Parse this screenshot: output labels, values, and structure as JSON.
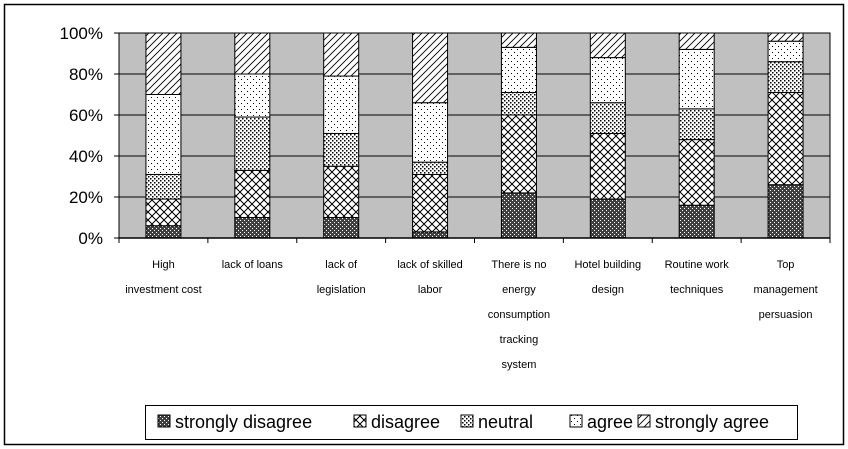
{
  "chart_data": {
    "type": "bar",
    "stacked": true,
    "percent": true,
    "title": "",
    "xlabel": "",
    "ylabel": "",
    "ylim": [
      0,
      100
    ],
    "yticks": [
      "0%",
      "20%",
      "40%",
      "60%",
      "80%",
      "100%"
    ],
    "categories": [
      [
        "High",
        "investment cost"
      ],
      [
        "lack of loans"
      ],
      [
        "lack of",
        "legislation"
      ],
      [
        "lack of skilled",
        "labor"
      ],
      [
        "There is no",
        "energy",
        "consumption",
        "tracking",
        "system"
      ],
      [
        "Hotel building",
        "design"
      ],
      [
        "Routine work",
        "techniques"
      ],
      [
        "Top",
        "management",
        "persuasion"
      ]
    ],
    "series": [
      {
        "name": "strongly disagree",
        "values": [
          6,
          10,
          10,
          3,
          22,
          19,
          16,
          26
        ]
      },
      {
        "name": "disagree",
        "values": [
          13,
          23,
          25,
          28,
          38,
          32,
          32,
          45
        ]
      },
      {
        "name": "neutral",
        "values": [
          12,
          26,
          16,
          6,
          11,
          15,
          15,
          15
        ]
      },
      {
        "name": "agree",
        "values": [
          39,
          21,
          28,
          29,
          22,
          22,
          29,
          10
        ]
      },
      {
        "name": "strongly agree",
        "values": [
          30,
          20,
          21,
          34,
          7,
          12,
          8,
          4
        ]
      }
    ],
    "legend_position": "bottom",
    "grid": true,
    "colors": {
      "plot_bg": "#c0c0c0",
      "bar_bg": "#ffffff",
      "ink": "#000000"
    }
  }
}
